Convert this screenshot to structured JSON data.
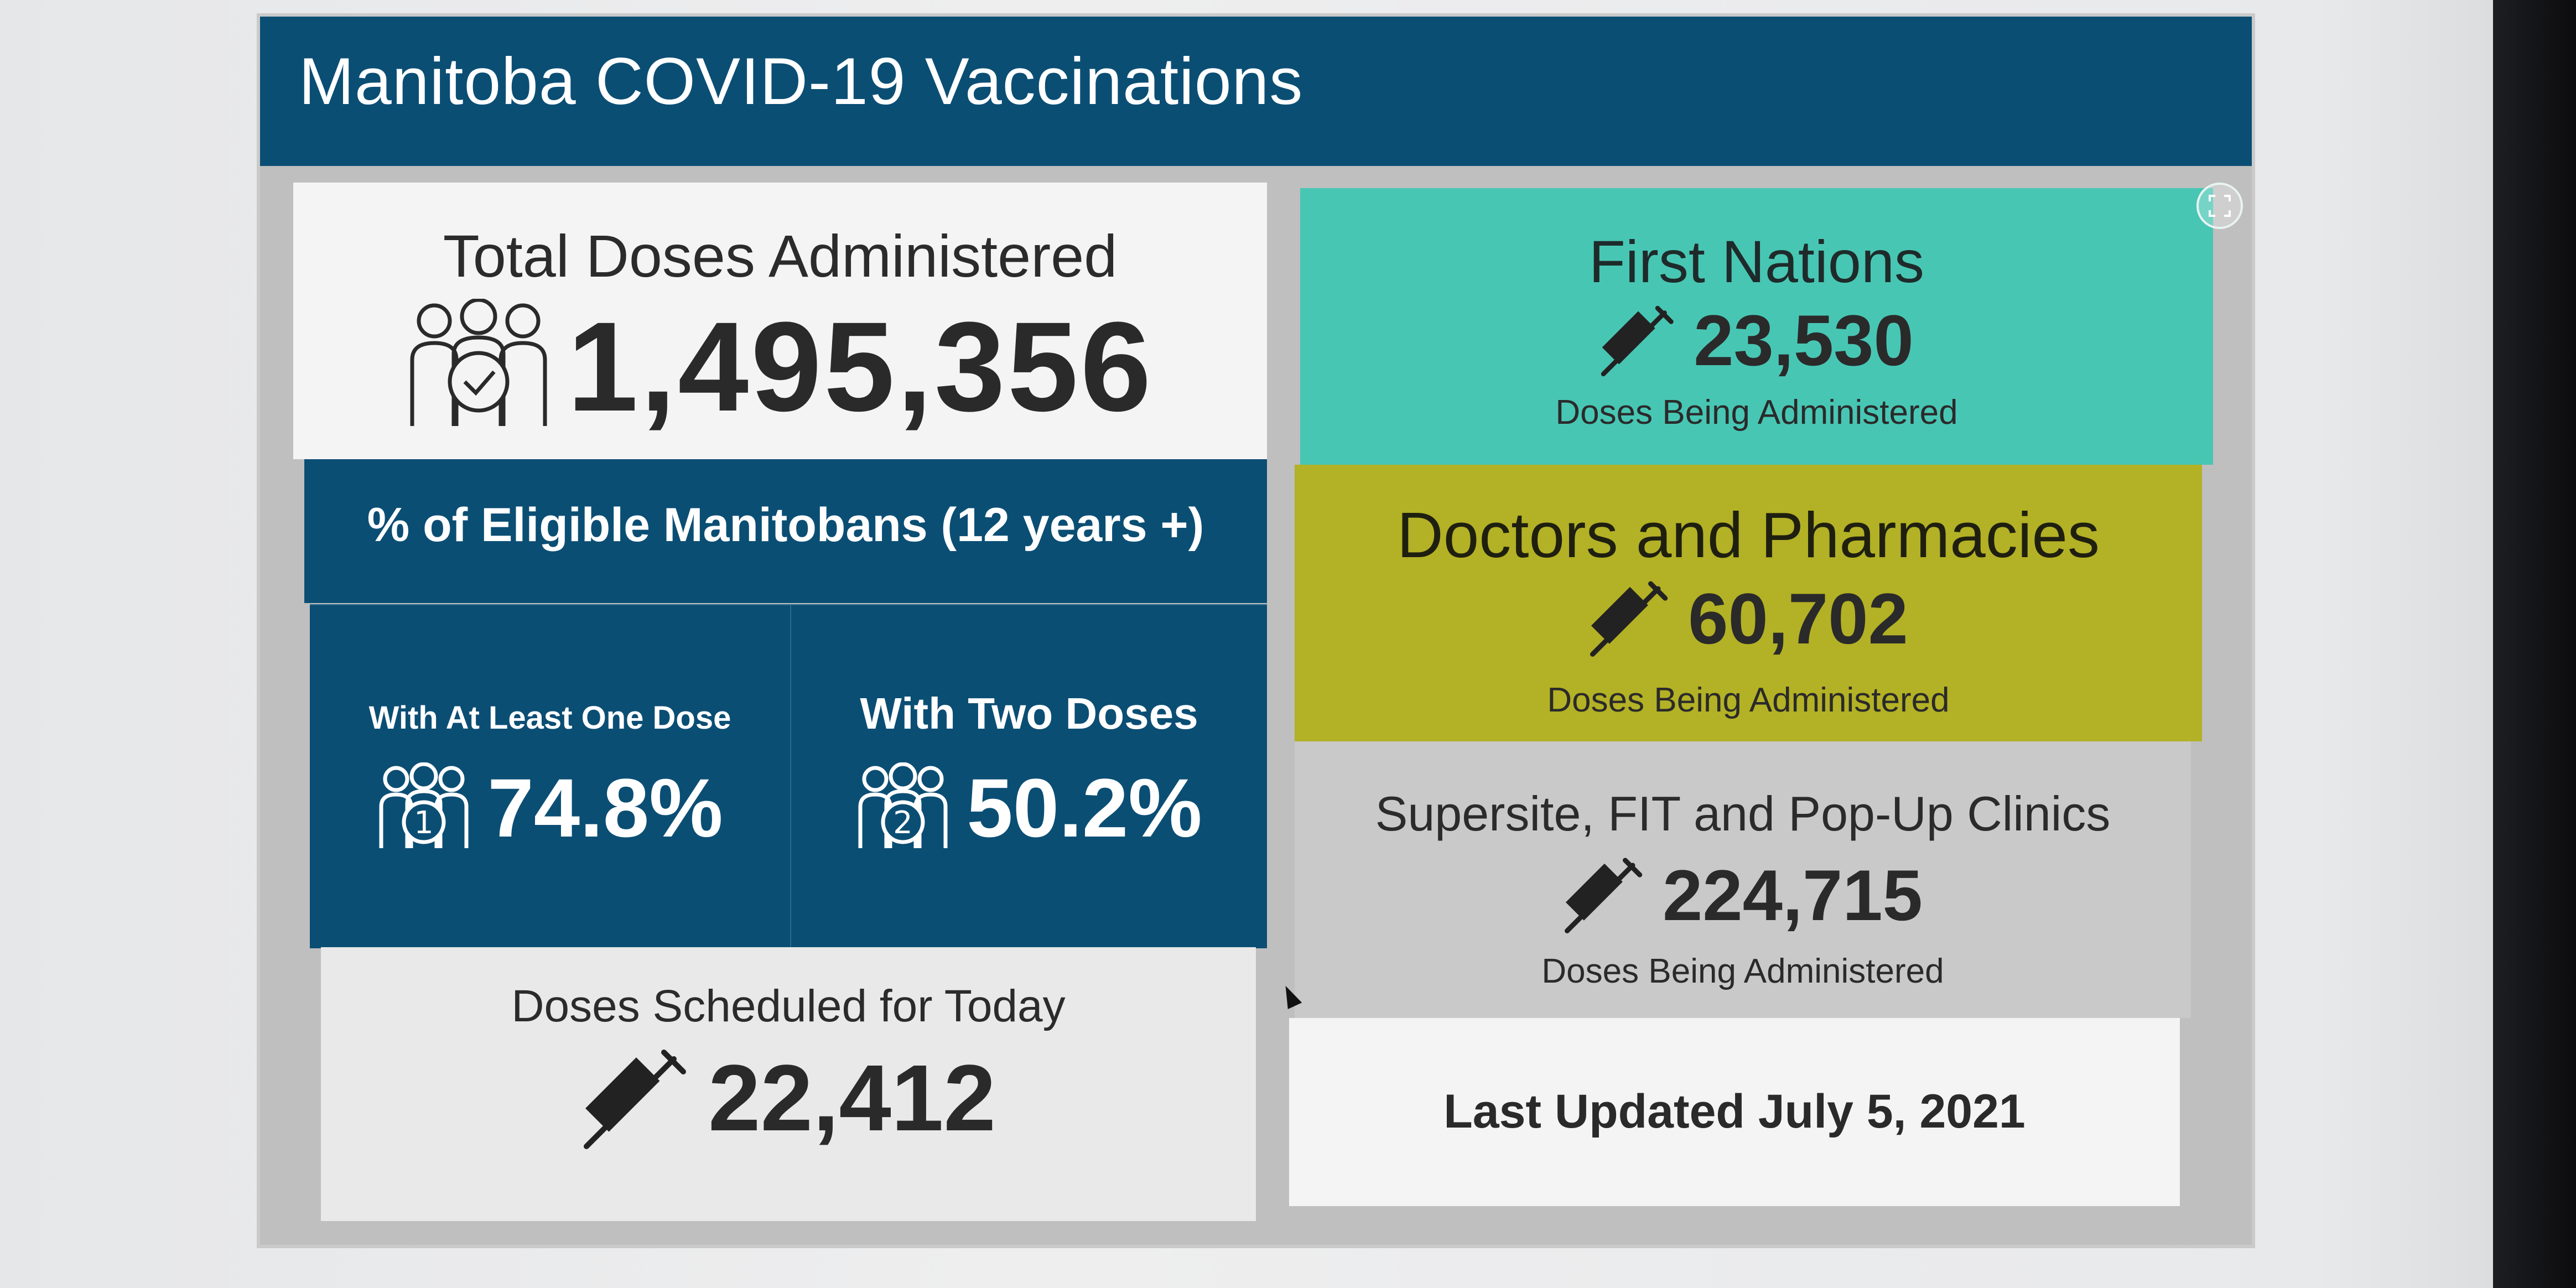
{
  "app": {
    "title": "Manitoba COVID-19 Vaccinations"
  },
  "total_doses": {
    "label": "Total Doses Administered",
    "value": "1,495,356",
    "icon": "people-check-icon"
  },
  "eligible": {
    "header": "% of Eligible Manitobans (12 years +)",
    "one_dose": {
      "label": "With At Least One Dose",
      "value": "74.8%",
      "icon": "people-one-icon",
      "badge": "1"
    },
    "two_doses": {
      "label": "With Two Doses",
      "value": "50.2%",
      "icon": "people-two-icon",
      "badge": "2"
    }
  },
  "scheduled_today": {
    "label": "Doses Scheduled for Today",
    "value": "22,412",
    "icon": "syringe-icon"
  },
  "first_nations": {
    "label": "First Nations",
    "value": "23,530",
    "sub": "Doses Being Administered",
    "icon": "syringe-icon"
  },
  "doctors_pharmacies": {
    "label": "Doctors and Pharmacies",
    "value": "60,702",
    "sub": "Doses Being Administered",
    "icon": "syringe-icon"
  },
  "supersite": {
    "label": "Supersite, FIT and Pop-Up Clinics",
    "value": "224,715",
    "sub": "Doses Being Administered",
    "icon": "syringe-icon"
  },
  "last_updated": {
    "text": "Last Updated July 5, 2021"
  },
  "colors": {
    "navy": "#0b4e74",
    "teal": "#48c6b4",
    "olive": "#b3b125",
    "grey": "#c9c9c9"
  }
}
